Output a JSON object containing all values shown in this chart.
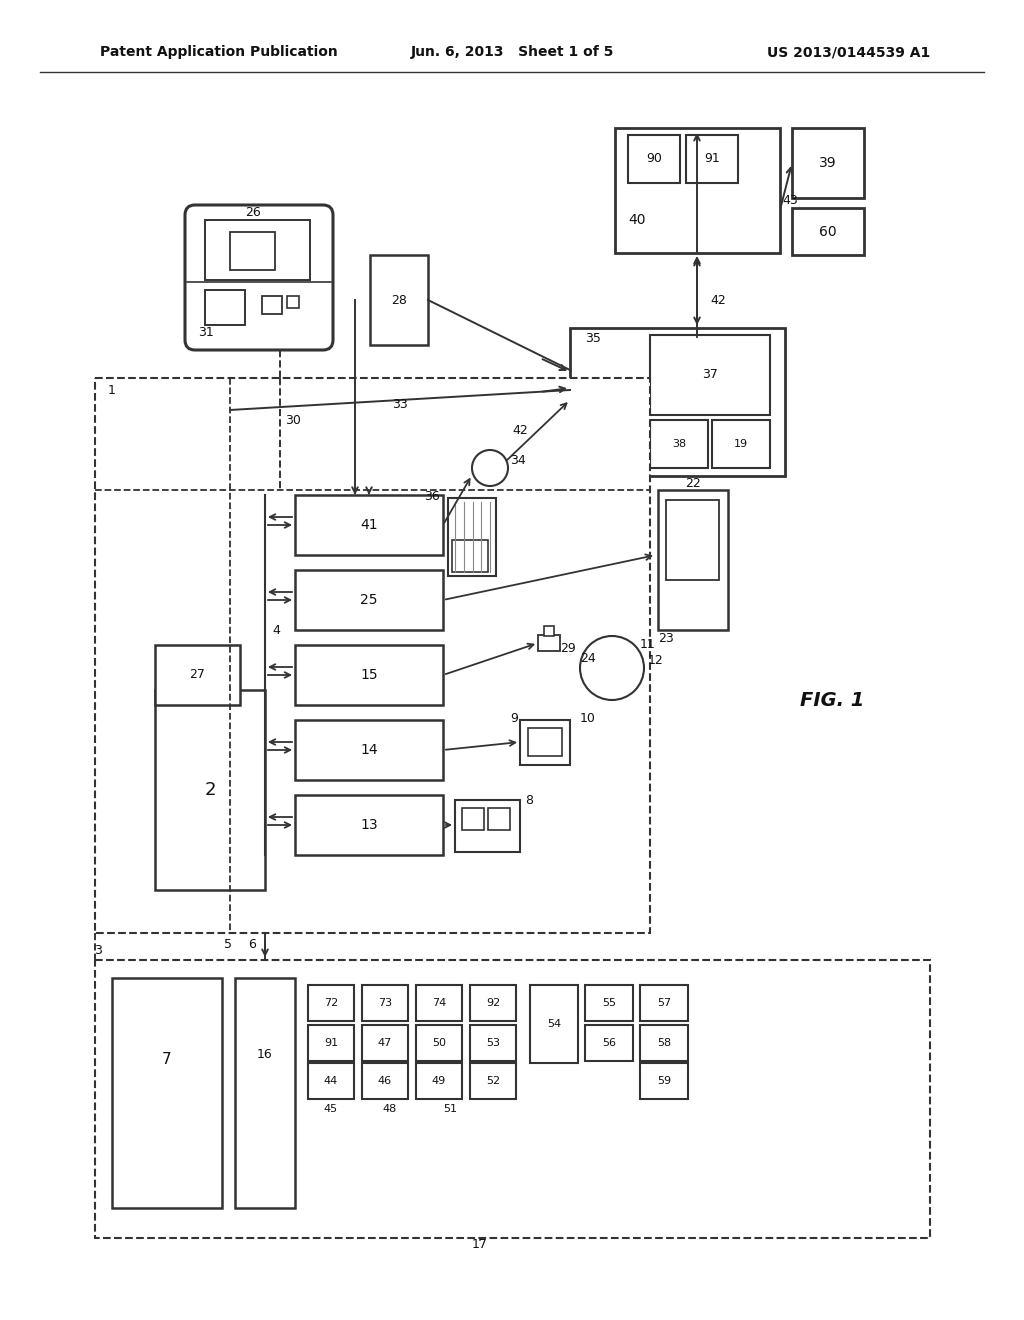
{
  "header_left": "Patent Application Publication",
  "header_center": "Jun. 6, 2013   Sheet 1 of 5",
  "header_right": "US 2013/0144539 A1",
  "fig_label": "FIG. 1",
  "bg": "#ffffff",
  "lc": "#333333",
  "tc": "#111111"
}
